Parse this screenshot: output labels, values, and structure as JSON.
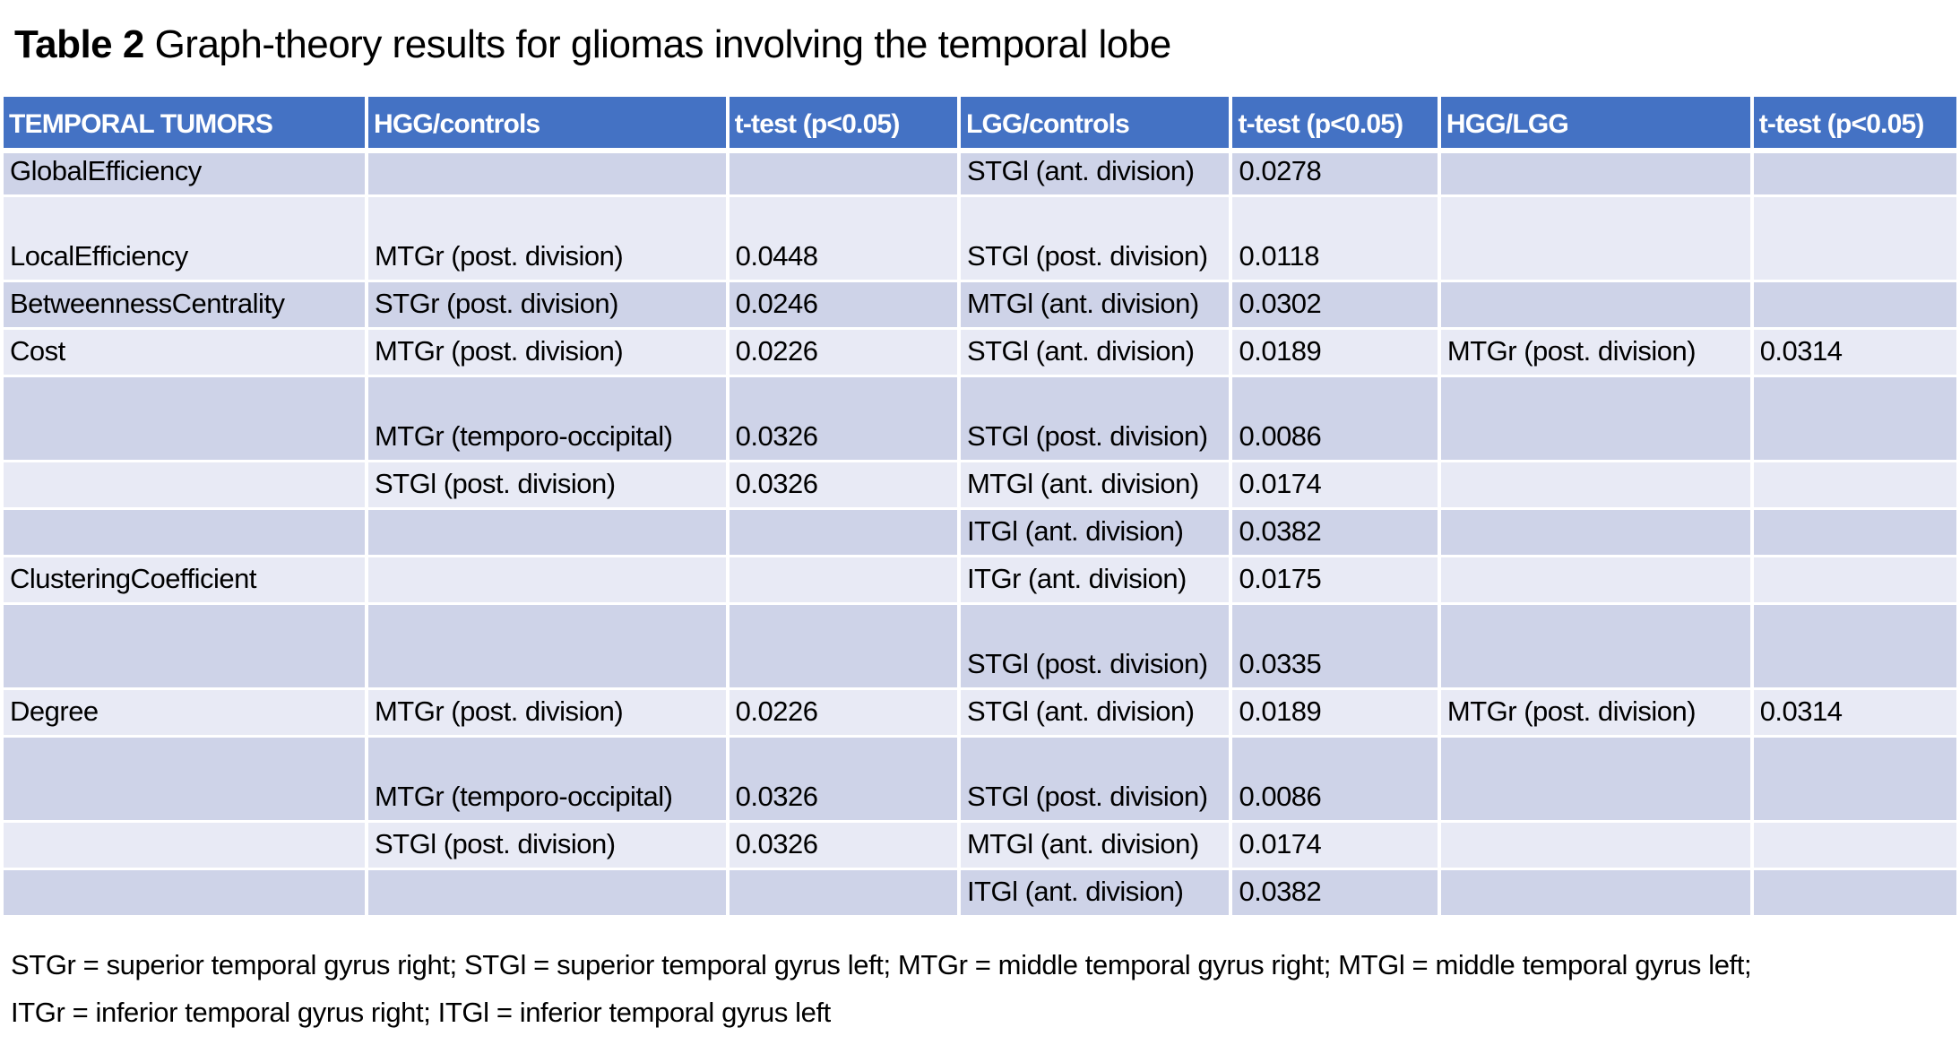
{
  "title": {
    "label": "Table 2",
    "text": " Graph-theory results for gliomas involving the temporal lobe"
  },
  "colors": {
    "header_bg": "#4472c4",
    "band_dark": "#ced3e8",
    "band_light": "#e8eaf5",
    "header_text": "#ffffff",
    "body_text": "#000000"
  },
  "table": {
    "columns": [
      "TEMPORAL TUMORS",
      "HGG/controls",
      "t-test (p<0.05)",
      "LGG/controls",
      "t-test (p<0.05)",
      "HGG/LGG",
      "t-test (p<0.05)"
    ],
    "rows": [
      {
        "band": "dark",
        "tall": false,
        "cells": [
          "GlobalEfficiency",
          "",
          "",
          "STGl (ant. division)",
          "0.0278",
          "",
          ""
        ]
      },
      {
        "band": "light",
        "tall": true,
        "cells": [
          "LocalEfficiency",
          "MTGr (post. division)",
          "0.0448",
          "STGl (post. division)",
          "0.0118",
          "",
          ""
        ]
      },
      {
        "band": "dark",
        "tall": false,
        "cells": [
          "BetweennessCentrality",
          "STGr (post. division)",
          "0.0246",
          "MTGl (ant. division)",
          "0.0302",
          "",
          ""
        ]
      },
      {
        "band": "light",
        "tall": false,
        "cells": [
          "Cost",
          "MTGr (post. division)",
          "0.0226",
          "STGl (ant. division)",
          "0.0189",
          "MTGr (post. division)",
          "0.0314"
        ]
      },
      {
        "band": "dark",
        "tall": true,
        "cells": [
          "",
          "MTGr (temporo-occipital)",
          "0.0326",
          "STGl (post. division)",
          "0.0086",
          "",
          ""
        ]
      },
      {
        "band": "light",
        "tall": false,
        "cells": [
          "",
          "STGl (post. division)",
          "0.0326",
          "MTGl (ant. division)",
          "0.0174",
          "",
          ""
        ]
      },
      {
        "band": "dark",
        "tall": false,
        "cells": [
          "",
          "",
          "",
          "ITGl (ant. division)",
          "0.0382",
          "",
          ""
        ]
      },
      {
        "band": "light",
        "tall": false,
        "cells": [
          "ClusteringCoefficient",
          "",
          "",
          "ITGr (ant. division)",
          "0.0175",
          "",
          ""
        ]
      },
      {
        "band": "dark",
        "tall": true,
        "cells": [
          "",
          "",
          "",
          "STGl (post. division)",
          "0.0335",
          "",
          ""
        ]
      },
      {
        "band": "light",
        "tall": false,
        "cells": [
          "Degree",
          "MTGr (post. division)",
          "0.0226",
          "STGl (ant. division)",
          "0.0189",
          "MTGr (post. division)",
          "0.0314"
        ]
      },
      {
        "band": "dark",
        "tall": true,
        "cells": [
          "",
          "MTGr (temporo-occipital)",
          "0.0326",
          "STGl (post. division)",
          "0.0086",
          "",
          ""
        ]
      },
      {
        "band": "light",
        "tall": false,
        "cells": [
          "",
          "STGl (post. division)",
          "0.0326",
          "MTGl (ant. division)",
          "0.0174",
          "",
          ""
        ]
      },
      {
        "band": "dark",
        "tall": false,
        "cells": [
          "",
          "",
          "",
          "ITGl (ant. division)",
          "0.0382",
          "",
          ""
        ]
      }
    ],
    "column_widths_pct": [
      18.7,
      18.5,
      11.8,
      13.9,
      10.6,
      16.0,
      10.5
    ]
  },
  "footnote": {
    "line1": "STGr = superior temporal gyrus right; STGl = superior temporal gyrus left; MTGr = middle temporal gyrus right; MTGl = middle temporal gyrus left;",
    "line2": "ITGr = inferior temporal gyrus right; ITGl = inferior temporal gyrus left"
  }
}
